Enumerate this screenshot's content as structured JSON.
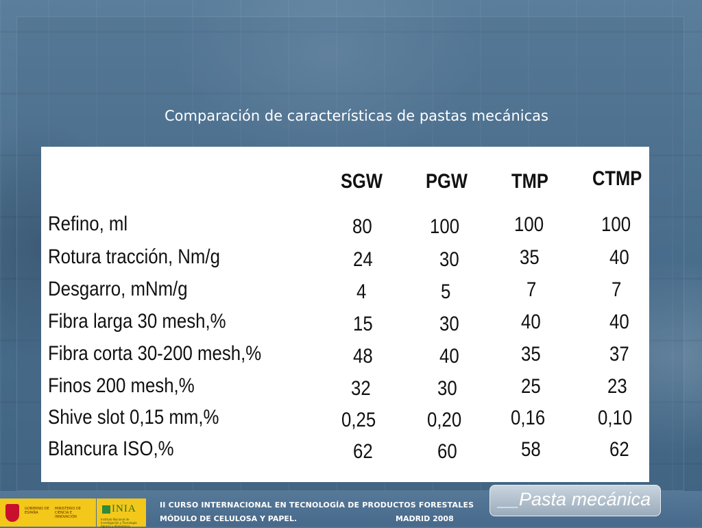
{
  "slide": {
    "title": "Comparación de características de pastas mecánicas"
  },
  "table": {
    "columns": [
      "SGW",
      "PGW",
      "TMP",
      "CTMP"
    ],
    "rows": [
      {
        "label": "Refino, ml",
        "values": [
          "80",
          "100",
          "100",
          "100"
        ]
      },
      {
        "label": "Rotura tracción, Nm/g",
        "values": [
          "24",
          "30",
          "35",
          "40"
        ]
      },
      {
        "label": "Desgarro, mNm/g",
        "values": [
          "4",
          "5",
          "7",
          "7"
        ]
      },
      {
        "label": "Fibra larga 30 mesh,%",
        "values": [
          "15",
          "30",
          "40",
          "40"
        ]
      },
      {
        "label": "Fibra corta 30-200 mesh,%",
        "values": [
          "48",
          "40",
          "35",
          "37"
        ]
      },
      {
        "label": "Finos 200 mesh,%",
        "values": [
          "32",
          "30",
          "25",
          "23"
        ]
      },
      {
        "label": "Shive slot 0,15 mm,%",
        "values": [
          "0,25",
          "0,20",
          "0,16",
          "0,10"
        ]
      },
      {
        "label": "Blancura ISO,%",
        "values": [
          "62",
          "60",
          "58",
          "62"
        ]
      }
    ]
  },
  "footer": {
    "course": "II CURSO INTERNACIONAL EN TECNOLOGÍA DE PRODUCTOS FORESTALES",
    "module": "MÓDULO DE CELULOSA Y PAPEL.",
    "location": "MADRID 2008",
    "logo_gob_line1": "GOBIERNO DE ESPAÑA",
    "logo_gob_line2": "MINISTERIO DE CIENCIA E INNOVACIÓN",
    "logo_inia_name": "INIA",
    "logo_inia_sub": "Instituto Nacional de Investigación y Tecnología Agraria y Alimentaria"
  },
  "badge": {
    "text": "__Pasta mecánica"
  },
  "colors": {
    "background": "#4f7594",
    "panel": "#ffffff",
    "logo_yellow": "#f3c81a"
  }
}
